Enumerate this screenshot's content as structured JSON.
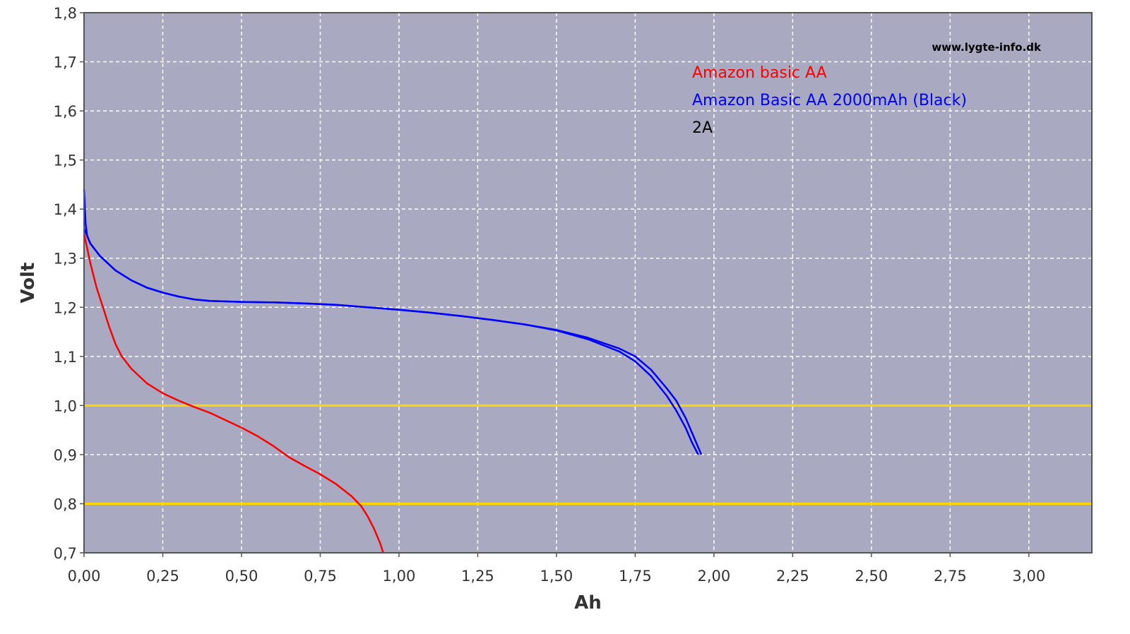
{
  "chart_data": {
    "type": "line",
    "xlabel": "Ah",
    "ylabel": "Volt",
    "xlim": [
      0,
      3.2
    ],
    "ylim": [
      0.7,
      1.8
    ],
    "x_ticks": [
      "0,00",
      "0,25",
      "0,50",
      "0,75",
      "1,00",
      "1,25",
      "1,50",
      "1,75",
      "2,00",
      "2,25",
      "2,50",
      "2,75",
      "3,00"
    ],
    "y_ticks": [
      "0,7",
      "0,8",
      "0,9",
      "1,0",
      "1,1",
      "1,2",
      "1,3",
      "1,4",
      "1,5",
      "1,6",
      "1,7",
      "1,8"
    ],
    "grid": true,
    "watermark": "www.lygte-info.dk",
    "legend": {
      "placement": "top-right",
      "entries": [
        {
          "label": "Amazon basic AA",
          "color": "#ff0000"
        },
        {
          "label": "Amazon Basic AA 2000mAh (Black)",
          "color": "#0000ff"
        },
        {
          "label": "2A",
          "color": "#000000"
        }
      ]
    },
    "reference_lines": [
      {
        "y": 1.0,
        "color": "#ffd700"
      },
      {
        "y": 0.8,
        "color": "#ffd700"
      }
    ],
    "colors": {
      "plot_bg": "#a9aac2",
      "grid": "#ffffff"
    },
    "series": [
      {
        "color": "#ff0000",
        "points": [
          [
            0,
            1.35
          ],
          [
            0.01,
            1.32
          ],
          [
            0.02,
            1.29
          ],
          [
            0.04,
            1.24
          ],
          [
            0.06,
            1.2
          ],
          [
            0.08,
            1.16
          ],
          [
            0.1,
            1.125
          ],
          [
            0.12,
            1.1
          ],
          [
            0.15,
            1.075
          ],
          [
            0.2,
            1.045
          ],
          [
            0.25,
            1.025
          ],
          [
            0.3,
            1.01
          ],
          [
            0.35,
            0.997
          ],
          [
            0.4,
            0.985
          ],
          [
            0.45,
            0.97
          ],
          [
            0.5,
            0.955
          ],
          [
            0.55,
            0.938
          ],
          [
            0.6,
            0.918
          ],
          [
            0.65,
            0.895
          ],
          [
            0.7,
            0.877
          ],
          [
            0.75,
            0.86
          ],
          [
            0.8,
            0.84
          ],
          [
            0.85,
            0.815
          ],
          [
            0.88,
            0.795
          ],
          [
            0.9,
            0.775
          ],
          [
            0.92,
            0.75
          ],
          [
            0.94,
            0.72
          ],
          [
            0.95,
            0.7
          ]
        ]
      },
      {
        "color": "#0000ff",
        "points": [
          [
            0,
            1.44
          ],
          [
            0.005,
            1.37
          ],
          [
            0.01,
            1.345
          ],
          [
            0.02,
            1.33
          ],
          [
            0.05,
            1.305
          ],
          [
            0.1,
            1.275
          ],
          [
            0.15,
            1.255
          ],
          [
            0.2,
            1.24
          ],
          [
            0.25,
            1.23
          ],
          [
            0.3,
            1.222
          ],
          [
            0.35,
            1.216
          ],
          [
            0.4,
            1.213
          ],
          [
            0.5,
            1.211
          ],
          [
            0.6,
            1.21
          ],
          [
            0.7,
            1.208
          ],
          [
            0.8,
            1.205
          ],
          [
            0.9,
            1.2
          ],
          [
            1.0,
            1.195
          ],
          [
            1.1,
            1.189
          ],
          [
            1.2,
            1.182
          ],
          [
            1.3,
            1.174
          ],
          [
            1.4,
            1.165
          ],
          [
            1.5,
            1.153
          ],
          [
            1.6,
            1.135
          ],
          [
            1.7,
            1.11
          ],
          [
            1.75,
            1.09
          ],
          [
            1.8,
            1.06
          ],
          [
            1.85,
            1.02
          ],
          [
            1.88,
            0.99
          ],
          [
            1.91,
            0.955
          ],
          [
            1.93,
            0.925
          ],
          [
            1.95,
            0.9
          ]
        ]
      },
      {
        "color": "#0000ff",
        "points": [
          [
            0,
            1.36
          ],
          [
            0.01,
            1.345
          ],
          [
            0.02,
            1.33
          ],
          [
            0.05,
            1.305
          ],
          [
            0.1,
            1.275
          ],
          [
            0.15,
            1.255
          ],
          [
            0.2,
            1.24
          ],
          [
            0.25,
            1.23
          ],
          [
            0.3,
            1.222
          ],
          [
            0.35,
            1.216
          ],
          [
            0.4,
            1.213
          ],
          [
            0.5,
            1.211
          ],
          [
            0.6,
            1.21
          ],
          [
            0.7,
            1.208
          ],
          [
            0.8,
            1.205
          ],
          [
            0.9,
            1.2
          ],
          [
            1.0,
            1.195
          ],
          [
            1.1,
            1.189
          ],
          [
            1.2,
            1.182
          ],
          [
            1.3,
            1.174
          ],
          [
            1.4,
            1.165
          ],
          [
            1.5,
            1.154
          ],
          [
            1.6,
            1.138
          ],
          [
            1.7,
            1.116
          ],
          [
            1.75,
            1.1
          ],
          [
            1.8,
            1.073
          ],
          [
            1.85,
            1.035
          ],
          [
            1.88,
            1.01
          ],
          [
            1.91,
            0.975
          ],
          [
            1.93,
            0.945
          ],
          [
            1.95,
            0.915
          ],
          [
            1.96,
            0.9
          ]
        ]
      }
    ]
  }
}
